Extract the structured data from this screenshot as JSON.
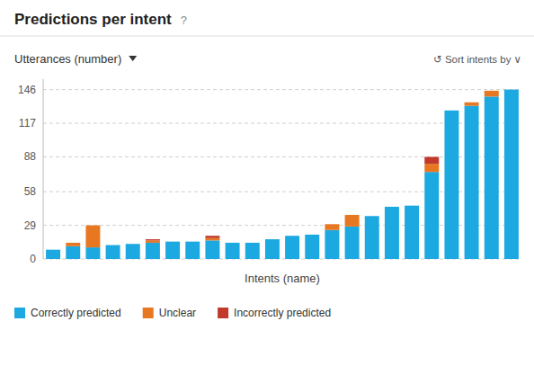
{
  "chart_data": {
    "type": "bar",
    "stacked": true,
    "title": "Predictions per intent",
    "xlabel": "Intents (name)",
    "ylabel": "Utterances (number)",
    "annotations": [
      "?",
      "↺  Sort intents by  ∨"
    ],
    "categories": [
      null,
      null,
      null,
      null,
      null,
      null,
      null,
      null,
      null,
      null,
      null,
      null,
      null,
      null,
      null,
      null,
      null,
      null,
      null,
      null,
      null,
      null,
      null,
      null
    ],
    "series": [
      {
        "name": "Correctly predicted",
        "color": "#1ca8e0",
        "values": [
          8,
          11,
          10,
          12,
          13,
          14,
          15,
          15,
          16,
          14,
          14,
          17,
          20,
          21,
          25,
          28,
          37,
          45,
          46,
          75,
          128,
          132,
          140,
          146
        ]
      },
      {
        "name": "Unclear",
        "color": "#e87722",
        "values": [
          0,
          3,
          19,
          0,
          0,
          2,
          0,
          0,
          2,
          0,
          0,
          0,
          0,
          0,
          5,
          10,
          0,
          0,
          0,
          7,
          0,
          3,
          5,
          0
        ]
      },
      {
        "name": "Incorrectly predicted",
        "color": "#c0392b",
        "values": [
          0,
          0,
          0,
          0,
          0,
          1,
          0,
          0,
          2,
          0,
          0,
          0,
          0,
          0,
          0,
          0,
          0,
          0,
          0,
          6,
          0,
          0,
          0,
          0
        ]
      }
    ],
    "ylim": [
      0,
      155
    ],
    "yticks": [
      0,
      29,
      58,
      88,
      117,
      146
    ],
    "grid": true,
    "legend": "bottom",
    "tick_labels": "y"
  }
}
